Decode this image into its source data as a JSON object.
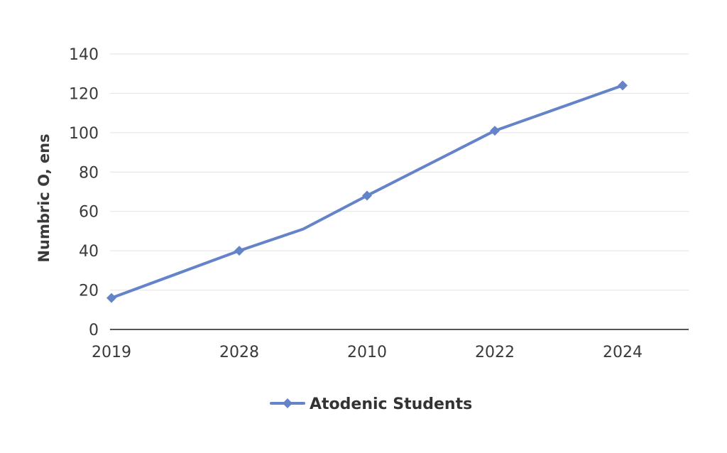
{
  "chart_data": {
    "type": "line",
    "title": "",
    "xlabel": "",
    "ylabel": "Numbric O, ens",
    "categories": [
      "2019",
      "2028",
      "2010",
      "2022",
      "2024"
    ],
    "points": [
      {
        "x": 0,
        "y": 16,
        "marker": true
      },
      {
        "x": 1,
        "y": 40,
        "marker": true
      },
      {
        "x": 1.5,
        "y": 51,
        "marker": false
      },
      {
        "x": 2,
        "y": 68,
        "marker": true
      },
      {
        "x": 3,
        "y": 101,
        "marker": true
      },
      {
        "x": 4,
        "y": 124,
        "marker": true
      }
    ],
    "series": [
      {
        "name": "Atodenic Students",
        "values": [
          16,
          40,
          68,
          101,
          124
        ]
      }
    ],
    "ylim": [
      0,
      140
    ],
    "yticks": [
      0,
      20,
      40,
      60,
      80,
      100,
      120,
      140
    ],
    "grid": true,
    "legend": "bottom-center",
    "series_color": "#6483c9"
  }
}
